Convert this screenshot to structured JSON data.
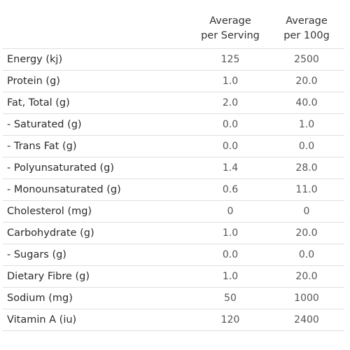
{
  "table": {
    "header": {
      "per_serving": [
        "Average",
        "per Serving"
      ],
      "per_100g": [
        "Average",
        "per 100g"
      ]
    },
    "rows": [
      {
        "nutrient": "Energy (kj)",
        "per_serving": "125",
        "per_100g": "2500"
      },
      {
        "nutrient": "Protein (g)",
        "per_serving": "1.0",
        "per_100g": "20.0"
      },
      {
        "nutrient": "Fat, Total (g)",
        "per_serving": "2.0",
        "per_100g": "40.0"
      },
      {
        "nutrient": "- Saturated (g)",
        "per_serving": "0.0",
        "per_100g": "1.0"
      },
      {
        "nutrient": "- Trans Fat (g)",
        "per_serving": "0.0",
        "per_100g": "0.0"
      },
      {
        "nutrient": "- Polyunsaturated (g)",
        "per_serving": "1.4",
        "per_100g": "28.0"
      },
      {
        "nutrient": "- Monounsaturated (g)",
        "per_serving": "0.6",
        "per_100g": "11.0"
      },
      {
        "nutrient": "Cholesterol (mg)",
        "per_serving": "0",
        "per_100g": "0"
      },
      {
        "nutrient": "Carbohydrate (g)",
        "per_serving": "1.0",
        "per_100g": "20.0"
      },
      {
        "nutrient": "- Sugars (g)",
        "per_serving": "0.0",
        "per_100g": "0.0"
      },
      {
        "nutrient": "Dietary Fibre (g)",
        "per_serving": "1.0",
        "per_100g": "20.0"
      },
      {
        "nutrient": "Sodium (mg)",
        "per_serving": "50",
        "per_100g": "1000"
      },
      {
        "nutrient": "Vitamin A (iu)",
        "per_serving": "120",
        "per_100g": "2400"
      }
    ]
  }
}
